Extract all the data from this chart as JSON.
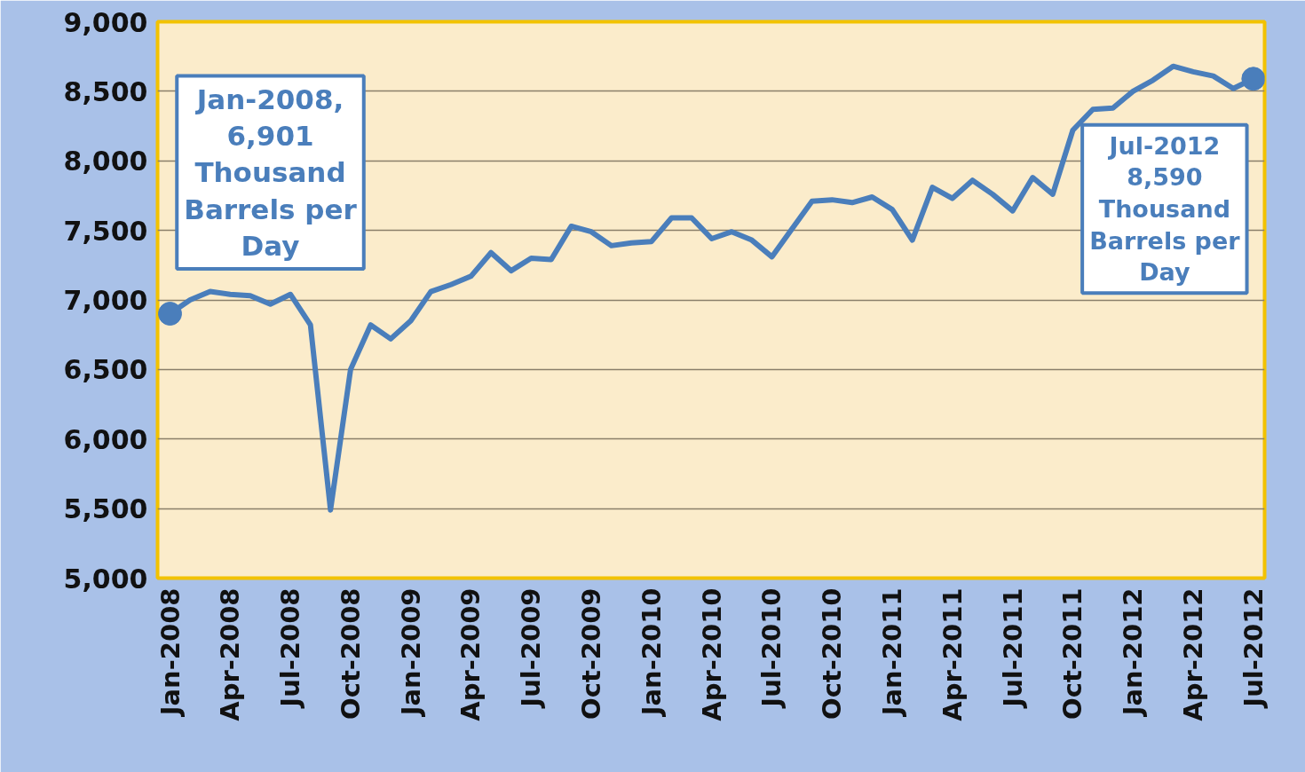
{
  "chart_data": {
    "type": "line",
    "categories": [
      "Jan-2008",
      null,
      null,
      "Apr-2008",
      null,
      null,
      "Jul-2008",
      null,
      null,
      "Oct-2008",
      null,
      null,
      "Jan-2009",
      null,
      null,
      "Apr-2009",
      null,
      null,
      "Jul-2009",
      null,
      null,
      "Oct-2009",
      null,
      null,
      "Jan-2010",
      null,
      null,
      "Apr-2010",
      null,
      null,
      "Jul-2010",
      null,
      null,
      "Oct-2010",
      null,
      null,
      "Jan-2011",
      null,
      null,
      "Apr-2011",
      null,
      null,
      "Jul-2011",
      null,
      null,
      "Oct-2011",
      null,
      null,
      "Jan-2012",
      null,
      null,
      "Apr-2012",
      null,
      null,
      "Jul-2012"
    ],
    "series": [
      {
        "color": "#4a7ebb",
        "values": [
          6901,
          7000,
          7060,
          7040,
          7030,
          6970,
          7040,
          6820,
          5490,
          6500,
          6820,
          6720,
          6850,
          7060,
          7110,
          7170,
          7340,
          7210,
          7300,
          7290,
          7530,
          7490,
          7390,
          7410,
          7420,
          7590,
          7590,
          7440,
          7490,
          7430,
          7310,
          7510,
          7710,
          7720,
          7700,
          7740,
          7650,
          7430,
          7810,
          7730,
          7860,
          7760,
          7640,
          7880,
          7760,
          8220,
          8370,
          8380,
          8500,
          8580,
          8680,
          8640,
          8610,
          8520,
          8590
        ]
      }
    ],
    "ylim": [
      5000,
      9000
    ],
    "yticks": [
      {
        "value": 5000,
        "label": "5,000"
      },
      {
        "value": 5500,
        "label": "5,500"
      },
      {
        "value": 6000,
        "label": "6,000"
      },
      {
        "value": 6500,
        "label": "6,500"
      },
      {
        "value": 7000,
        "label": "7,000"
      },
      {
        "value": 7500,
        "label": "7,500"
      },
      {
        "value": 8000,
        "label": "8,000"
      },
      {
        "value": 8500,
        "label": "8,500"
      },
      {
        "value": 9000,
        "label": "9,000"
      }
    ],
    "grid": "y",
    "marker": "none",
    "line_style": "solid",
    "annotations": [
      {
        "text": "Jan-2008,\n6,901\nThousand\nBarrels per\nDay",
        "x": "Jan-2008",
        "y": 6901
      },
      {
        "text": "Jul-2012\n8,590\nThousand\nBarrels per\nDay",
        "x": "Jul-2012",
        "y": 8590
      }
    ]
  }
}
